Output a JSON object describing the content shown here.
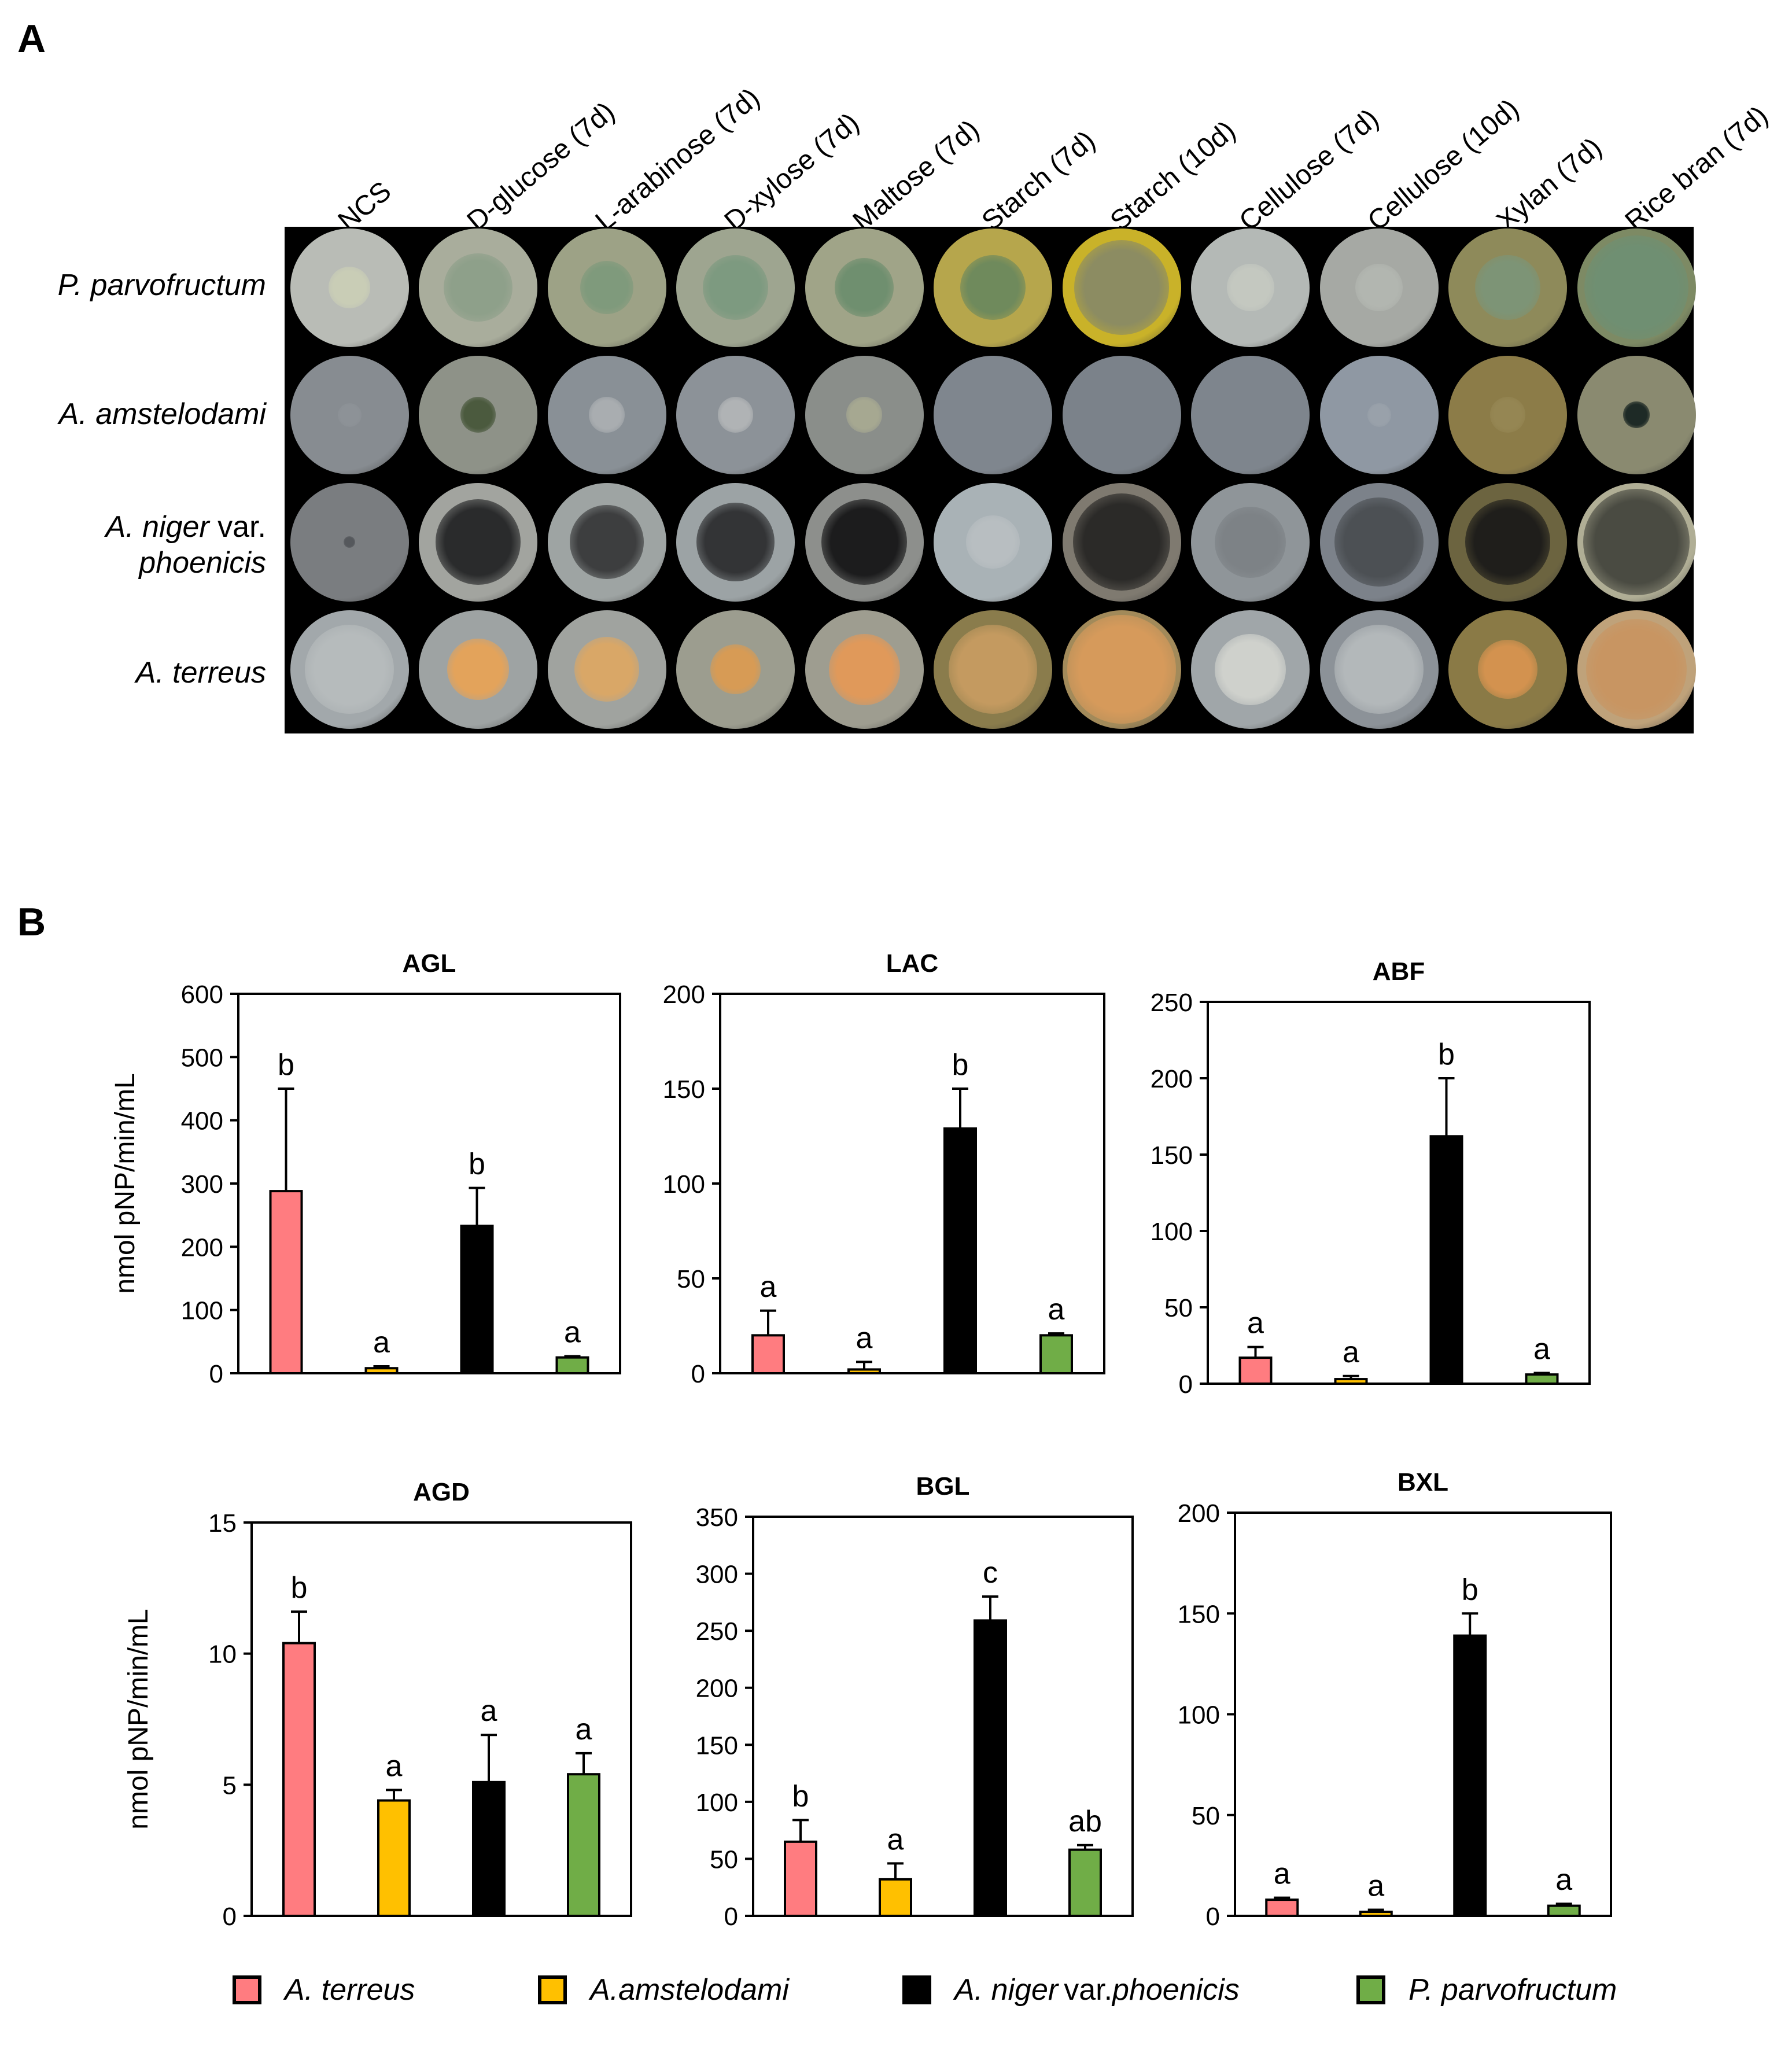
{
  "panel_a": {
    "letter": "A",
    "columns": [
      "NCS",
      "D-glucose (7d)",
      "L-arabinose (7d)",
      "D-xylose (7d)",
      "Maltose (7d)",
      "Starch (7d)",
      "Starch (10d)",
      "Cellulose (7d)",
      "Cellulose (10d)",
      "Xylan (7d)",
      "Rice bran (7d)"
    ],
    "rows": [
      {
        "italic": "P. parvofructum",
        "plain": ""
      },
      {
        "italic": "A. amstelodami",
        "plain": ""
      },
      {
        "italic": "A. niger",
        "plain": " var.",
        "italic2": "phoenicis"
      },
      {
        "italic": "A. terreus",
        "plain": ""
      }
    ],
    "plates": [
      [
        [
          "#b9bcb6",
          "#c9cdb6",
          0.35
        ],
        [
          "#a9ad9c",
          "#8ea08a",
          0.58
        ],
        [
          "#9da286",
          "#7f9a7c",
          0.45
        ],
        [
          "#9ea590",
          "#7d9a80",
          0.55
        ],
        [
          "#a0a488",
          "#6f8f6f",
          0.5
        ],
        [
          "#b6a64c",
          "#6f8a5c",
          0.55
        ],
        [
          "#c9b229",
          "#8c8c62",
          0.8
        ],
        [
          "#b4b9b6",
          "#c4c8c0",
          0.4
        ],
        [
          "#a6a9a4",
          "#b2b6b0",
          0.4
        ],
        [
          "#8e8a5a",
          "#7d9476",
          0.55
        ],
        [
          "#7d8a64",
          "#6f8f72",
          0.88
        ]
      ],
      [
        [
          "#878c91",
          "#8d9297",
          0.2
        ],
        [
          "#8e9288",
          "#4b5a3e",
          0.3
        ],
        [
          "#899096",
          "#a9adb0",
          0.3
        ],
        [
          "#8c9298",
          "#b0b3b5",
          0.3
        ],
        [
          "#8a8e8a",
          "#a6a891",
          0.3
        ],
        [
          "#7f868e",
          "#7f868e",
          0.1
        ],
        [
          "#7b828a",
          "#7b828a",
          0.1
        ],
        [
          "#7e858d",
          "#7e858d",
          0.1
        ],
        [
          "#8f98a3",
          "#99a1aa",
          0.2
        ],
        [
          "#8c7c48",
          "#958653",
          0.3
        ],
        [
          "#8a8a70",
          "#1e2a26",
          0.22
        ]
      ],
      [
        [
          "#7a7d80",
          "#55585c",
          0.1
        ],
        [
          "#a2a49f",
          "#2a2b2c",
          0.72
        ],
        [
          "#9ea4a3",
          "#3d3e3f",
          0.62
        ],
        [
          "#9ca3a5",
          "#333436",
          0.66
        ],
        [
          "#8d8f8c",
          "#1c1c1d",
          0.72
        ],
        [
          "#a9b2b6",
          "#b8bec1",
          0.45
        ],
        [
          "#7f7a70",
          "#2b2a28",
          0.82
        ],
        [
          "#8f9599",
          "#7d8286",
          0.6
        ],
        [
          "#7c828a",
          "#4c5054",
          0.75
        ],
        [
          "#6c6440",
          "#1f1e1b",
          0.72
        ],
        [
          "#b0ae95",
          "#4a4b42",
          0.9
        ]
      ],
      [
        [
          "#a2a8ab",
          "#b6bbbc",
          0.75
        ],
        [
          "#9ea3a3",
          "#e3a35b",
          0.52
        ],
        [
          "#a0a39f",
          "#d9a767",
          0.55
        ],
        [
          "#9c9d8f",
          "#d79b55",
          0.42
        ],
        [
          "#9e9d90",
          "#e0995a",
          0.6
        ],
        [
          "#8a7c4c",
          "#c49a60",
          0.75
        ],
        [
          "#a28a5a",
          "#d69a5b",
          0.92
        ],
        [
          "#a0a6a9",
          "#cfd1cc",
          0.6
        ],
        [
          "#8c9298",
          "#b3b8ba",
          0.75
        ],
        [
          "#8a7a46",
          "#d3924f",
          0.5
        ],
        [
          "#bfa27a",
          "#c89562",
          0.85
        ]
      ]
    ]
  },
  "panel_b": {
    "letter": "B",
    "ylabel": "nmol pNP/min/mL",
    "colors": {
      "terreus": "#ff7c80",
      "amstelodami": "#ffc000",
      "niger": "#000000",
      "parvofructum": "#70ad47"
    }
  },
  "legend": [
    {
      "italic": "A. terreus",
      "plain": "",
      "italic2": "",
      "color": "#ff7c80"
    },
    {
      "italic": "A.amstelodami",
      "plain": "",
      "italic2": "",
      "color": "#ffc000"
    },
    {
      "italic": "A. niger",
      "plain": "var. ",
      "italic2": "phoenicis",
      "color": "#000000"
    },
    {
      "italic": "P. parvofructum",
      "plain": "",
      "italic2": "",
      "color": "#70ad47"
    }
  ],
  "chart_data": [
    {
      "type": "bar",
      "title": "AGL",
      "ylabel": "nmol pNP/min/mL",
      "ylim": [
        0,
        600
      ],
      "yticks": [
        0,
        100,
        200,
        300,
        400,
        500,
        600
      ],
      "values": [
        288,
        8,
        233,
        25
      ],
      "errors": [
        162,
        3,
        60,
        2
      ],
      "letters": [
        "b",
        "a",
        "b",
        "a"
      ]
    },
    {
      "type": "bar",
      "title": "LAC",
      "ylabel": "",
      "ylim": [
        0,
        200
      ],
      "yticks": [
        0,
        50,
        100,
        150,
        200
      ],
      "values": [
        20,
        2,
        129,
        20
      ],
      "errors": [
        13,
        4,
        21,
        1
      ],
      "letters": [
        "a",
        "a",
        "b",
        "a"
      ]
    },
    {
      "type": "bar",
      "title": "ABF",
      "ylabel": "",
      "ylim": [
        0,
        250
      ],
      "yticks": [
        0,
        50,
        100,
        150,
        200,
        250
      ],
      "values": [
        17,
        3,
        162,
        6
      ],
      "errors": [
        7,
        2,
        38,
        1
      ],
      "letters": [
        "a",
        "a",
        "b",
        "a"
      ]
    },
    {
      "type": "bar",
      "title": "AGD",
      "ylabel": "nmol pNP/min/mL",
      "ylim": [
        0,
        15
      ],
      "yticks": [
        0,
        5,
        10,
        15
      ],
      "values": [
        10.4,
        4.4,
        5.1,
        5.4
      ],
      "errors": [
        1.2,
        0.4,
        1.8,
        0.8
      ],
      "letters": [
        "b",
        "a",
        "a",
        "a"
      ]
    },
    {
      "type": "bar",
      "title": "BGL",
      "ylabel": "",
      "ylim": [
        0,
        350
      ],
      "yticks": [
        0,
        50,
        100,
        150,
        200,
        250,
        300,
        350
      ],
      "values": [
        65,
        32,
        259,
        58
      ],
      "errors": [
        19,
        14,
        21,
        4
      ],
      "letters": [
        "b",
        "a",
        "c",
        "ab"
      ]
    },
    {
      "type": "bar",
      "title": "BXL",
      "ylabel": "",
      "ylim": [
        0,
        200
      ],
      "yticks": [
        0,
        50,
        100,
        150,
        200
      ],
      "values": [
        8,
        2,
        139,
        5
      ],
      "errors": [
        1,
        1,
        11,
        1
      ],
      "letters": [
        "a",
        "a",
        "b",
        "a"
      ]
    }
  ]
}
